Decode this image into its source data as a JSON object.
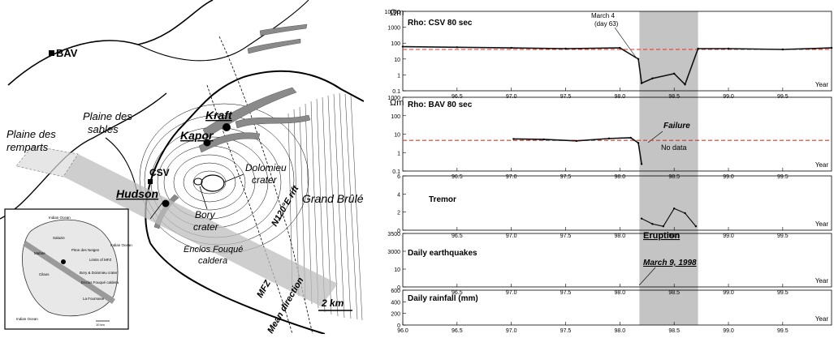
{
  "map": {
    "labels": {
      "bav": "BAV",
      "plaine_remparts": [
        "Plaine des",
        "remparts"
      ],
      "plaine_sables": [
        "Plaine des",
        "sables"
      ],
      "kraft": "Kraft",
      "kapor": "Kapor",
      "csv": "CSV",
      "hudson": "Hudson",
      "dolomieu": [
        "Dolomieu",
        "crater"
      ],
      "bory": [
        "Bory",
        "crater"
      ],
      "grand_brule": "Grand Brûlé",
      "enclos": [
        "Enclos Fouqué",
        "caldera"
      ],
      "rift": "N120°E rift",
      "mfz": [
        "MFZ",
        "Mean direction"
      ],
      "scale": "2 km"
    },
    "inset": {
      "labels": [
        "Indian Ocean",
        "Indian Ocean",
        "Indian Ocean",
        "Salazie",
        "Mafate",
        "Cilaos",
        "Piton des Neiges",
        "La Fournaise",
        "Limits of MFZ",
        "Bory & Dolomieu crater",
        "Enclos Fouqué caldera",
        "10 km"
      ]
    }
  },
  "chart_data": [
    {
      "type": "line",
      "title": "Rho: CSV 80 sec",
      "unit_label": "Ωm",
      "y_scale": "log",
      "ylim": [
        0.1,
        10000
      ],
      "y_ticks": [
        "10000",
        "1000",
        "100",
        "10",
        "1",
        "0.1"
      ],
      "x_ticks": [
        "96.5",
        "97.0",
        "97.5",
        "98.0",
        "98.5",
        "99.0",
        "99.5"
      ],
      "xlim": [
        96.0,
        99.95
      ],
      "xlabel": "Year",
      "reference_line": 40,
      "annotations": [
        "March 4",
        "(day 63)"
      ],
      "series": [
        {
          "x": [
            96.0,
            96.5,
            97.0,
            97.5,
            98.0,
            98.17,
            98.2,
            98.3,
            98.5,
            98.6,
            98.72,
            99.0,
            99.5,
            99.95
          ],
          "y": [
            60,
            55,
            50,
            45,
            50,
            10,
            0.3,
            0.6,
            1.2,
            0.25,
            45,
            45,
            40,
            50
          ]
        }
      ]
    },
    {
      "type": "line",
      "title": "Rho: BAV 80 sec",
      "unit_label": "Ωm",
      "y_scale": "log",
      "ylim": [
        0.1,
        10000
      ],
      "y_ticks": [
        "1000",
        "100",
        "10",
        "1",
        "0.1"
      ],
      "x_ticks": [
        "96.5",
        "97.0",
        "97.5",
        "98.0",
        "98.5",
        "99.0",
        "99.5"
      ],
      "xlim": [
        96.0,
        99.95
      ],
      "xlabel": "Year",
      "reference_line": 12,
      "annotations": [
        "Failure",
        "No data"
      ],
      "series": [
        {
          "x": [
            97.02,
            97.3,
            97.6,
            97.9,
            98.1,
            98.17,
            98.2
          ],
          "y": [
            15,
            14,
            11,
            16,
            18,
            8,
            0.3
          ]
        }
      ]
    },
    {
      "type": "line",
      "title": "Tremor",
      "ylim": [
        0,
        7
      ],
      "y_ticks": [
        "6",
        "4",
        "2",
        "0"
      ],
      "x_ticks": [
        "96.5",
        "97.0",
        "97.5",
        "98.0",
        "98.5",
        "99.0",
        "99.5"
      ],
      "xlim": [
        96.0,
        99.95
      ],
      "xlabel": "Year",
      "series": [
        {
          "x": [
            98.2,
            98.3,
            98.4,
            98.5,
            98.6,
            98.7
          ],
          "y": [
            1.5,
            0.8,
            0.5,
            2.8,
            2.2,
            0.5
          ]
        }
      ]
    },
    {
      "type": "bar",
      "title": "Daily earthquakes",
      "y_ticks": [
        "3500",
        "3000",
        "10",
        "0"
      ],
      "x_ticks": [
        "96.5",
        "97.0",
        "97.5",
        "98.0",
        "98.5",
        "99.0",
        "99.5"
      ],
      "xlim": [
        96.0,
        99.95
      ],
      "xlabel": "Year",
      "annotations": [
        "Eruption",
        "March 9, 1998"
      ]
    },
    {
      "type": "bar",
      "title": "Daily rainfall (mm)",
      "y_ticks": [
        "600",
        "400",
        "200",
        "0"
      ],
      "x_ticks": [
        "96.0",
        "96.5",
        "97.0",
        "97.5",
        "98.0",
        "98.5",
        "99.0",
        "99.5"
      ],
      "xlim": [
        96.0,
        99.95
      ],
      "xlabel": "Year"
    }
  ],
  "shaded_interval": [
    98.18,
    98.72
  ]
}
